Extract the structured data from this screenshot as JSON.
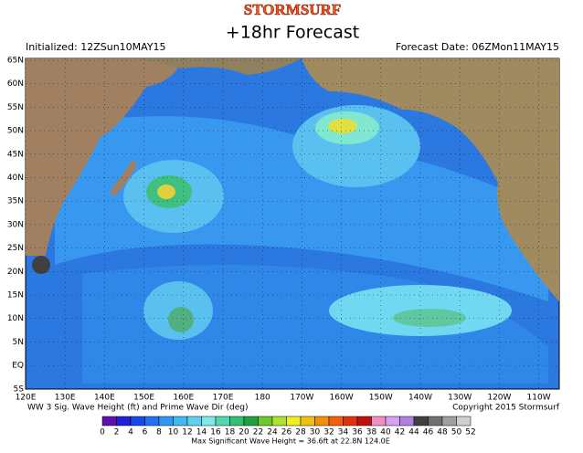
{
  "header": {
    "logo": "STORMSURF",
    "title": "+18hr Forecast",
    "initialized": "Initialized: 12ZSun10MAY15",
    "forecast_date": "Forecast Date: 06ZMon11MAY15"
  },
  "map": {
    "lat_labels": [
      "65N",
      "60N",
      "55N",
      "50N",
      "45N",
      "40N",
      "35N",
      "30N",
      "25N",
      "20N",
      "15N",
      "10N",
      "5N",
      "EQ",
      "5S"
    ],
    "lon_labels": [
      "120E",
      "130E",
      "140E",
      "150E",
      "160E",
      "170E",
      "180",
      "170W",
      "160W",
      "150W",
      "140W",
      "130W",
      "120W",
      "110W"
    ]
  },
  "footer": {
    "product": "WW 3 Sig. Wave Height (ft) and Prime Wave Dir (deg)",
    "copyright": "Copyright 2015 Stormsurf",
    "max_note": "Max Significant Wave Height = 36.6ft at 22.8N 124.0E"
  },
  "colorbar": {
    "ticks": [
      0,
      2,
      4,
      6,
      8,
      10,
      12,
      14,
      16,
      18,
      20,
      22,
      24,
      26,
      28,
      30,
      32,
      34,
      36,
      38,
      40,
      42,
      44,
      46,
      48,
      50,
      52
    ],
    "colors": [
      "#6010b0",
      "#2020d8",
      "#1848e8",
      "#2070f0",
      "#3098f0",
      "#40b8f0",
      "#60d0f0",
      "#80e8e8",
      "#50d8b0",
      "#30c070",
      "#20a040",
      "#70c830",
      "#b0e030",
      "#f0f020",
      "#f0c010",
      "#f09010",
      "#f06010",
      "#e03010",
      "#c01010",
      "#f090c0",
      "#d8a0f0",
      "#b080e0",
      "#404040",
      "#707070",
      "#a0a0a0",
      "#d0d0d0"
    ]
  }
}
